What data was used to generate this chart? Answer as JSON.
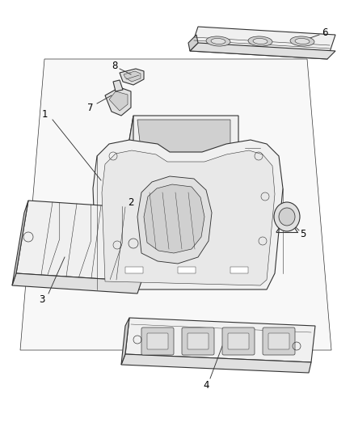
{
  "background_color": "#ffffff",
  "line_color": "#333333",
  "line_width": 0.8,
  "label_color": "#000000",
  "label_fontsize": 8.5,
  "fig_width": 4.39,
  "fig_height": 5.33,
  "dpi": 100
}
